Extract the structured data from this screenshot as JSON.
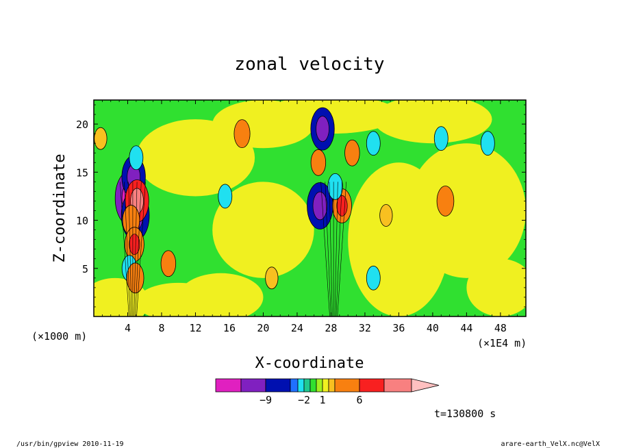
{
  "chart_data": {
    "type": "heatmap",
    "title": "zonal velocity",
    "xlabel": "X-coordinate",
    "ylabel": "Z-coordinate",
    "x_unit_left": "(×1000 m)",
    "x_unit_right": "(×1E4 m)",
    "x_ticks": [
      4,
      8,
      12,
      16,
      20,
      24,
      28,
      32,
      36,
      40,
      44,
      48
    ],
    "y_ticks": [
      5,
      10,
      15,
      20
    ],
    "xlim": [
      0,
      51
    ],
    "ylim": [
      0,
      22.5
    ],
    "colorbar": {
      "levels": [
        -12,
        -9,
        -6,
        -3,
        -2,
        -1,
        0,
        1,
        2,
        3,
        6,
        9,
        12
      ],
      "labels": [
        -9,
        -2,
        1,
        6
      ],
      "colors": [
        "#e020c0",
        "#8020c0",
        "#0010b0",
        "#2070ff",
        "#20e0f0",
        "#20c890",
        "#30e030",
        "#a0f020",
        "#f0f020",
        "#f8c020",
        "#f88010",
        "#f82020",
        "#f88080",
        "#ffc0c0"
      ]
    },
    "features": [
      {
        "x": 4.3,
        "z": 12.3,
        "value": -10
      },
      {
        "x": 4.9,
        "z": 10.5,
        "value": -9
      },
      {
        "x": 4.7,
        "z": 14.5,
        "value": -7
      },
      {
        "x": 5.1,
        "z": 12.0,
        "value": 7
      },
      {
        "x": 4.4,
        "z": 10.0,
        "value": 4
      },
      {
        "x": 4.8,
        "z": 7.5,
        "value": 5
      },
      {
        "x": 4.2,
        "z": 5.0,
        "value": -3
      },
      {
        "x": 4.9,
        "z": 4.0,
        "value": 4
      },
      {
        "x": 5.0,
        "z": 16.5,
        "value": -2.5
      },
      {
        "x": 17.5,
        "z": 19.0,
        "value": 3.5
      },
      {
        "x": 15.5,
        "z": 12.5,
        "value": -2.5
      },
      {
        "x": 27.0,
        "z": 19.5,
        "value": -7
      },
      {
        "x": 26.5,
        "z": 16.0,
        "value": 3
      },
      {
        "x": 26.7,
        "z": 11.5,
        "value": -8
      },
      {
        "x": 29.3,
        "z": 11.5,
        "value": 5
      },
      {
        "x": 28.5,
        "z": 13.5,
        "value": -3
      },
      {
        "x": 30.5,
        "z": 17.0,
        "value": 3
      },
      {
        "x": 33.0,
        "z": 18.0,
        "value": -2.5
      },
      {
        "x": 41.5,
        "z": 12.0,
        "value": 4
      },
      {
        "x": 41.0,
        "z": 18.5,
        "value": -2.5
      },
      {
        "x": 46.5,
        "z": 18.0,
        "value": -2.5
      },
      {
        "x": 21.0,
        "z": 4.0,
        "value": 2
      },
      {
        "x": 33.0,
        "z": 4.0,
        "value": -2.5
      },
      {
        "x": 0.8,
        "z": 18.5,
        "value": 2
      },
      {
        "x": 8.8,
        "z": 5.5,
        "value": 3
      },
      {
        "x": 34.5,
        "z": 10.5,
        "value": 2
      }
    ]
  },
  "time_label": "t=130800 s",
  "footer": {
    "left": "/usr/bin/gpview   2010-11-19",
    "right": "arare-earth_VelX.nc@VelX"
  }
}
